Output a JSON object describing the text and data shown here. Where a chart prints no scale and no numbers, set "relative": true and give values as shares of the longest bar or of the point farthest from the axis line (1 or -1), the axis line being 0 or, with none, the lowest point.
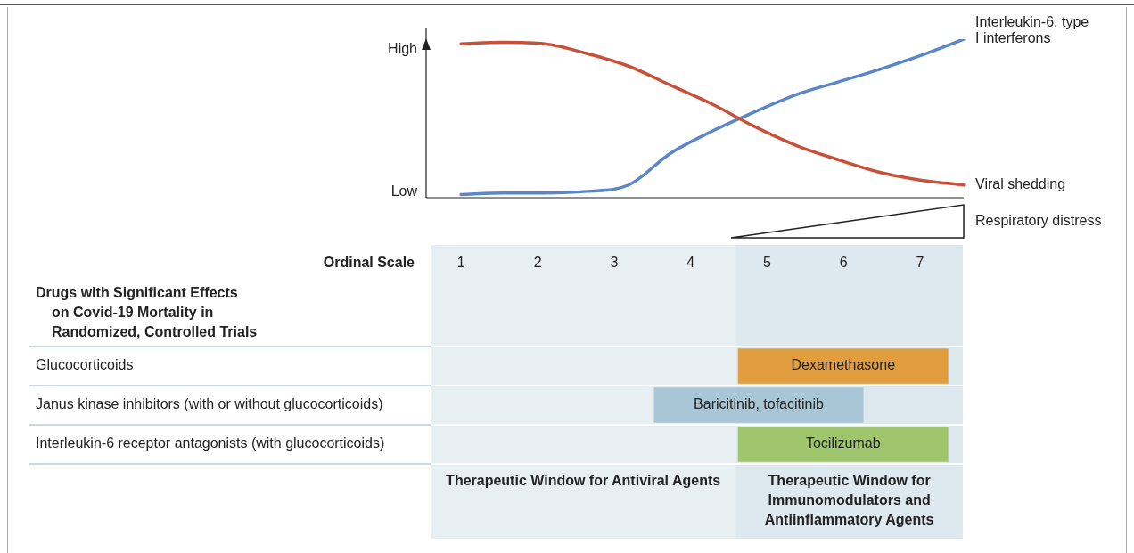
{
  "chart_data": [
    {
      "type": "line",
      "relative": true,
      "marker": "none",
      "legend": false,
      "categories": [
        null,
        null,
        null,
        null,
        null,
        null,
        null,
        null,
        null,
        null,
        null,
        null,
        null
      ],
      "series": [
        {
          "name": "Viral shedding",
          "color": "#c9513a",
          "values": [
            0.97,
            0.98,
            0.97,
            0.91,
            0.83,
            0.71,
            0.59,
            0.45,
            0.33,
            0.24,
            0.16,
            0.11,
            0.08
          ]
        },
        {
          "name": "Interleukin-6, type I interferons",
          "color": "#5b87c9",
          "values": [
            0.02,
            0.03,
            0.03,
            0.04,
            0.08,
            0.28,
            0.42,
            0.54,
            0.65,
            0.73,
            0.81,
            0.9,
            1.0
          ]
        }
      ],
      "annotations": [
        "High",
        "Low",
        "Respiratory distress"
      ]
    },
    {
      "type": "bar",
      "orientation": "horizontal",
      "legend": false,
      "xlabel": "Ordinal Scale",
      "ylabel": "Drugs with Significant Effects on Covid-19 Mortality in Randomized, Controlled Trials",
      "categories": [
        "Glucocorticoids",
        "Janus kinase inhibitors (with or without glucocorticoids)",
        "Interleukin-6 receptor antagonists (with glucocorticoids)"
      ],
      "base": [
        4.62,
        3.52,
        4.62
      ],
      "values": [
        2.75,
        2.74,
        2.75
      ],
      "colors": [
        "#e29d3e",
        "#a9c6d6",
        "#9fc56d"
      ],
      "value_labels": [
        "Dexamethasone",
        "Baricitinib, tofacitinib",
        "Tocilizumab"
      ],
      "xlim": [
        0.6,
        7.56
      ],
      "xticks": [
        1,
        2,
        3,
        4,
        5,
        6,
        7
      ],
      "bands": [
        {
          "axis": "x",
          "from": 0.6,
          "to": 4.59,
          "label": "Therapeutic Window for Antiviral Agents",
          "color": "#e8eff3"
        },
        {
          "axis": "x",
          "from": 4.59,
          "to": 7.56,
          "label": "Therapeutic Window for Immunomodulators and Antiinflammatory Agents",
          "color": "#dde8ef"
        }
      ]
    }
  ]
}
